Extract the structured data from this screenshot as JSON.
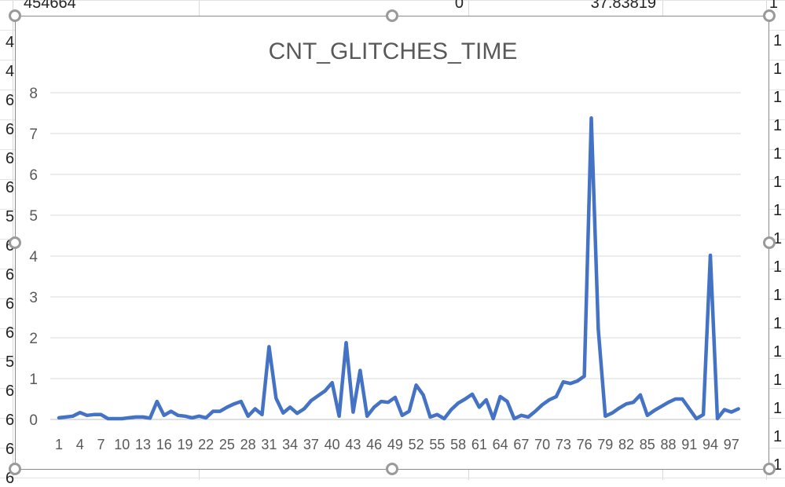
{
  "sheet": {
    "top_row_cells": [
      "454664",
      "0",
      "37.83819",
      "1"
    ],
    "left_column_fragments": [
      "4",
      "4",
      "6",
      "6",
      "6",
      "6",
      "5",
      "6",
      "6",
      "6",
      "6",
      "5",
      "6",
      "6",
      "6",
      "6"
    ],
    "right_column_fragments": [
      "1",
      "1",
      "1",
      "1",
      "1",
      "1",
      "1",
      "1",
      "1",
      "1",
      "1",
      "1",
      "1",
      "1",
      "1",
      "1"
    ]
  },
  "chart_data": {
    "type": "line",
    "title": "CNT_GLITCHES_TIME",
    "xlabel": "",
    "ylabel": "",
    "ylim": [
      0,
      8
    ],
    "y_ticks": [
      0,
      1,
      2,
      3,
      4,
      5,
      6,
      7,
      8
    ],
    "grid": true,
    "legend": "none",
    "x_tick_labels": [
      "1",
      "4",
      "7",
      "10",
      "13",
      "16",
      "19",
      "22",
      "25",
      "28",
      "31",
      "34",
      "37",
      "40",
      "43",
      "46",
      "49",
      "52",
      "55",
      "58",
      "61",
      "64",
      "67",
      "70",
      "73",
      "76",
      "79",
      "82",
      "85",
      "88",
      "91",
      "94",
      "97"
    ],
    "series": [
      {
        "name": "",
        "color": "#4472c4",
        "values": [
          0.04,
          0.06,
          0.08,
          0.17,
          0.1,
          0.12,
          0.12,
          0.02,
          0.02,
          0.02,
          0.04,
          0.06,
          0.06,
          0.03,
          0.44,
          0.1,
          0.2,
          0.1,
          0.08,
          0.04,
          0.08,
          0.04,
          0.2,
          0.2,
          0.3,
          0.38,
          0.44,
          0.08,
          0.26,
          0.12,
          1.78,
          0.52,
          0.16,
          0.3,
          0.15,
          0.26,
          0.46,
          0.58,
          0.7,
          0.9,
          0.08,
          1.88,
          0.18,
          1.2,
          0.08,
          0.3,
          0.44,
          0.42,
          0.54,
          0.1,
          0.2,
          0.84,
          0.6,
          0.06,
          0.12,
          0.02,
          0.24,
          0.4,
          0.5,
          0.62,
          0.3,
          0.48,
          0.02,
          0.56,
          0.44,
          0.02,
          0.1,
          0.06,
          0.2,
          0.36,
          0.48,
          0.56,
          0.92,
          0.88,
          0.94,
          1.06,
          7.38,
          2.2,
          0.08,
          0.16,
          0.28,
          0.38,
          0.42,
          0.6,
          0.1,
          0.22,
          0.32,
          0.42,
          0.5,
          0.5,
          0.26,
          0.02,
          0.12,
          4.02,
          0.02,
          0.24,
          0.18,
          0.26
        ]
      }
    ]
  }
}
